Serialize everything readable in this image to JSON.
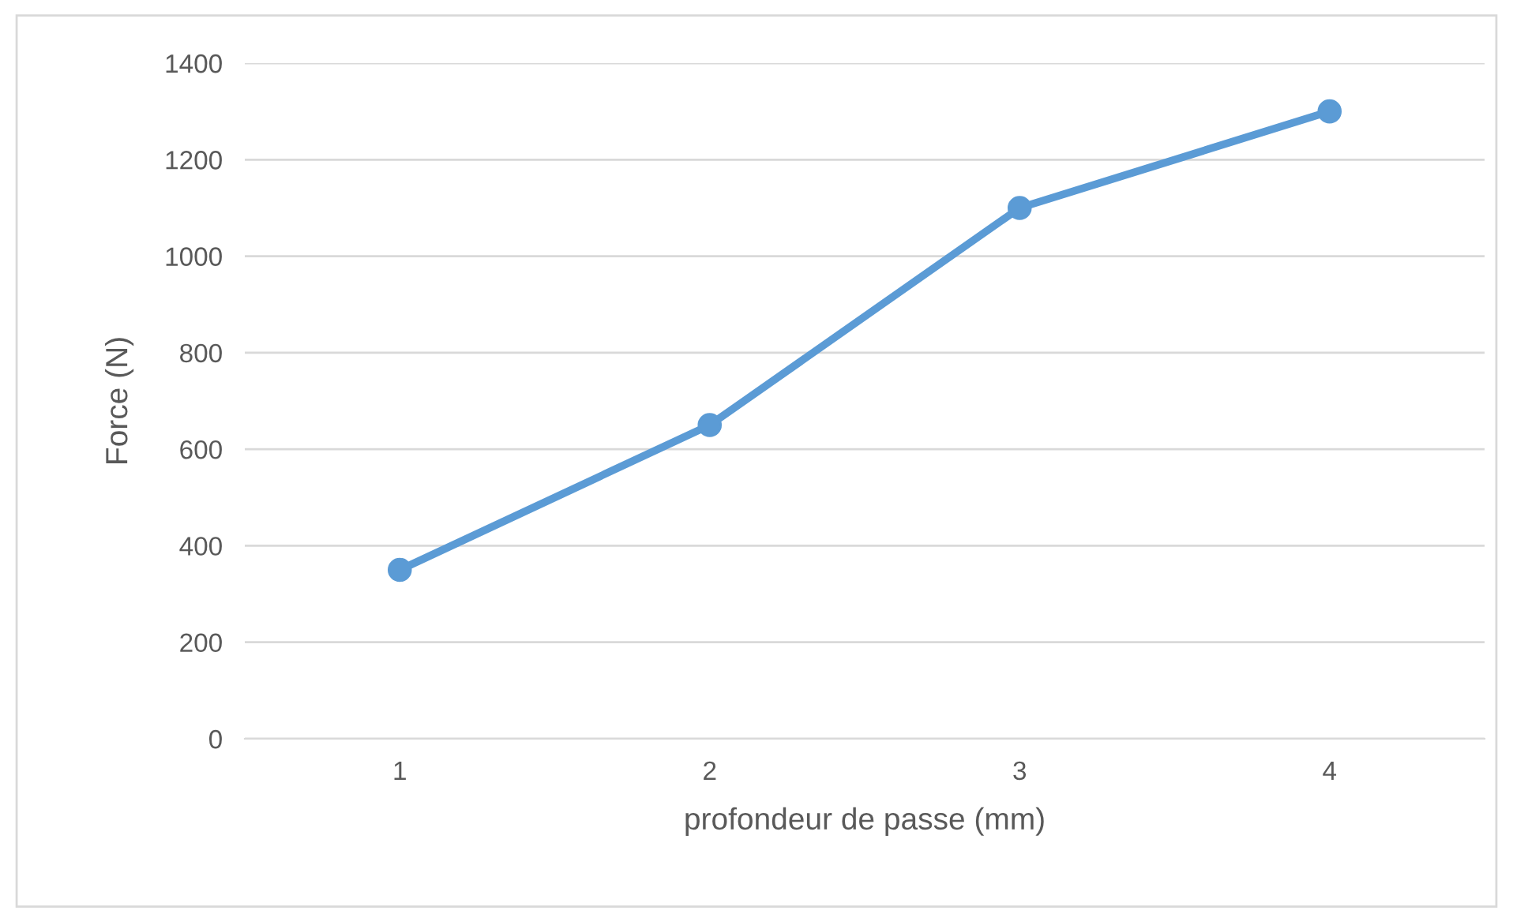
{
  "chart_data": {
    "type": "line",
    "xlabel": "profondeur de passe (mm)",
    "ylabel": "Force (N)",
    "categories": [
      "1",
      "2",
      "3",
      "4"
    ],
    "series": [
      {
        "color": "#5b9bd5",
        "values": [
          350,
          650,
          1100,
          1300
        ]
      }
    ],
    "ylim": [
      0,
      1400
    ],
    "yticks": [
      0,
      200,
      400,
      600,
      800,
      1000,
      1200,
      1400
    ],
    "grid": "y",
    "marker": "circle",
    "line_style": "solid"
  }
}
